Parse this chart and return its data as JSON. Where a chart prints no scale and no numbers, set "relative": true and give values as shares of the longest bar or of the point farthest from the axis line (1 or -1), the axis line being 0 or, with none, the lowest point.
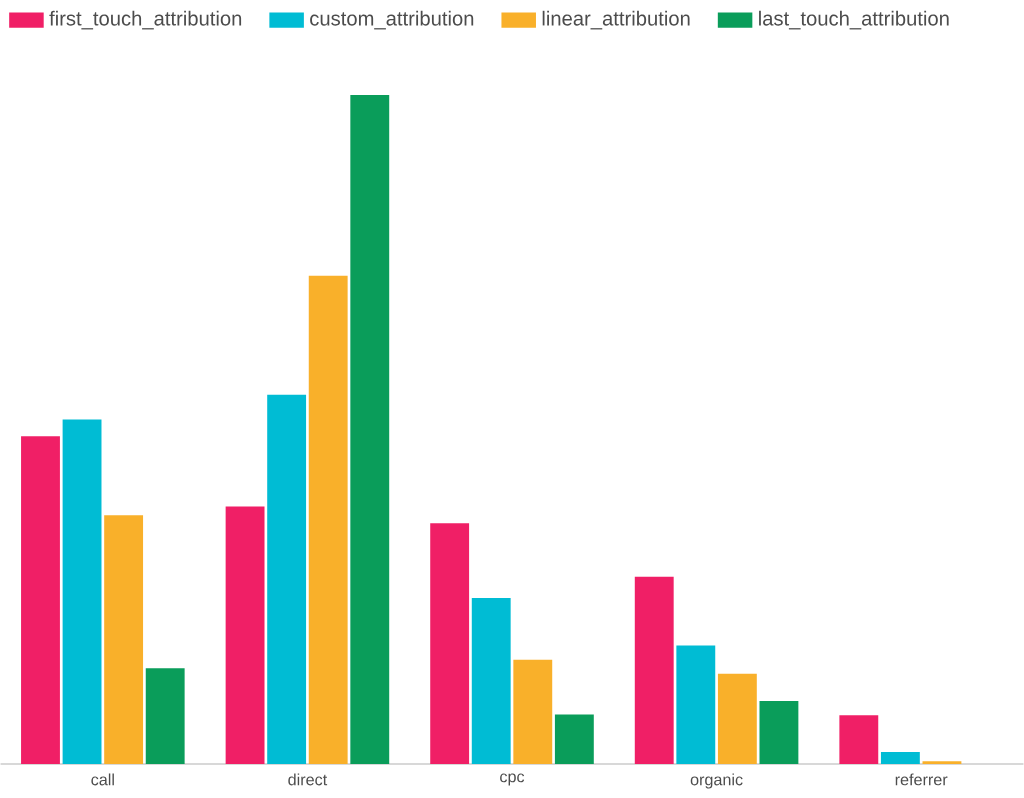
{
  "chart_data": {
    "type": "bar",
    "relative": true,
    "legend": "top left",
    "categories": [
      "call",
      "direct",
      "cpc",
      "organic",
      "referrer"
    ],
    "series": [
      {
        "name": "first_touch_attribution",
        "color": "#f01f66",
        "values": [
          0.49,
          0.385,
          0.36,
          0.28,
          0.073
        ]
      },
      {
        "name": "custom_attribution",
        "color": "#00bcd4",
        "values": [
          0.515,
          0.552,
          0.248,
          0.177,
          0.018
        ]
      },
      {
        "name": "linear_attribution",
        "color": "#f9b02a",
        "values": [
          0.372,
          0.73,
          0.156,
          0.135,
          0.004
        ]
      },
      {
        "name": "last_touch_attribution",
        "color": "#0a9d5a",
        "values": [
          0.143,
          1,
          0.074,
          0.094,
          0
        ]
      }
    ]
  }
}
